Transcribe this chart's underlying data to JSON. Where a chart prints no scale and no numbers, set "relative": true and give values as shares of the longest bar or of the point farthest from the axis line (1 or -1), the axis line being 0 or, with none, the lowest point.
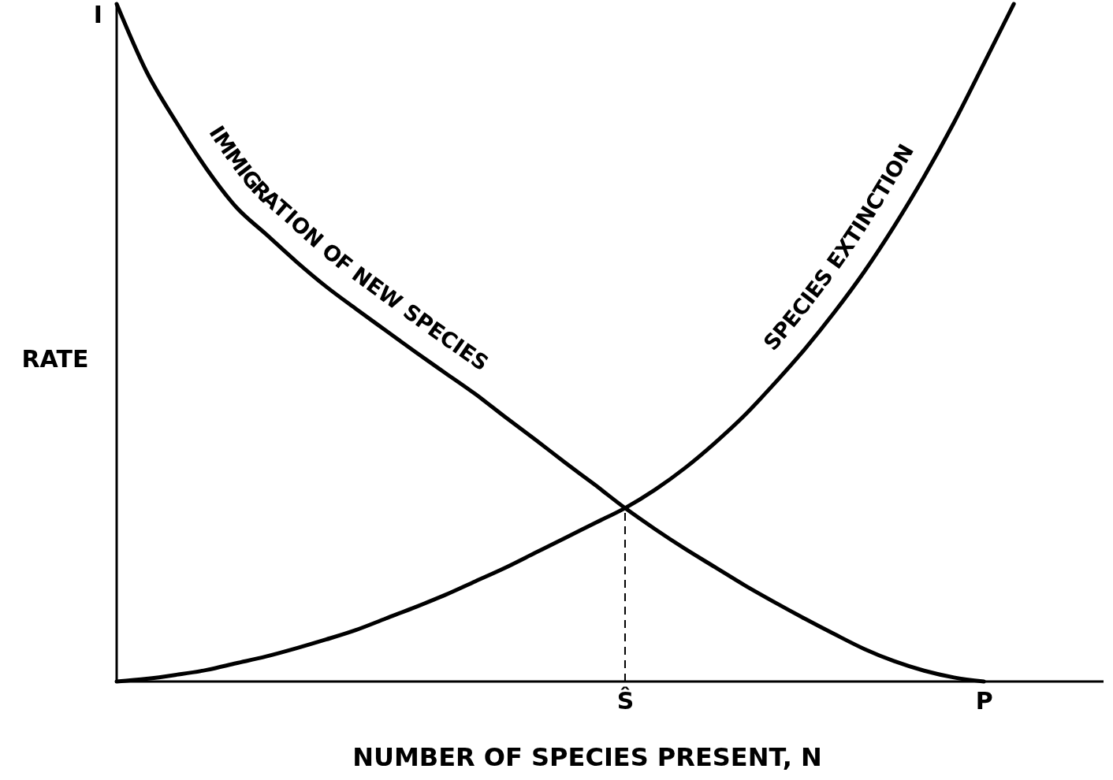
{
  "chart_data": {
    "type": "line",
    "relative": true,
    "xlabel": "NUMBER OF SPECIES PRESENT, N",
    "ylabel": "RATE",
    "line_style": "solid",
    "categories": [
      null,
      null,
      null,
      null,
      null,
      null,
      null,
      null,
      null,
      null,
      null,
      null,
      null,
      null,
      null,
      null,
      null,
      "Ŝ",
      null,
      null,
      null,
      null,
      null,
      null,
      null,
      null,
      null,
      null,
      null,
      "P",
      null,
      null,
      null,
      null
    ],
    "series": [
      {
        "name": "IMMIGRATION OF NEW SPECIES",
        "color": "#000000",
        "values": [
          1,
          0.9,
          0.825,
          0.757,
          0.7,
          0.66,
          0.62,
          0.583,
          0.55,
          0.518,
          0.486,
          0.455,
          0.424,
          0.39,
          0.357,
          0.323,
          0.29,
          0.256,
          0.225,
          0.196,
          0.169,
          0.142,
          0.117,
          0.093,
          0.07,
          0.048,
          0.03,
          0.016,
          0.006,
          0,
          null,
          null,
          null,
          null
        ]
      },
      {
        "name": "SPECIES EXTINCTION",
        "color": "#000000",
        "values": [
          0,
          0.004,
          0.01,
          0.017,
          0.027,
          0.037,
          0.049,
          0.062,
          0.076,
          0.093,
          0.11,
          0.128,
          0.148,
          0.168,
          0.19,
          0.212,
          0.234,
          0.256,
          0.283,
          0.315,
          0.352,
          0.393,
          0.44,
          0.49,
          0.545,
          0.605,
          0.672,
          0.745,
          0.825,
          0.912,
          1,
          null,
          null,
          null
        ]
      }
    ],
    "ref_lines": [
      {
        "axis": "x",
        "value": "Ŝ",
        "line_style": "dashed",
        "color": "#000000"
      }
    ],
    "annotations": [
      "I"
    ]
  }
}
